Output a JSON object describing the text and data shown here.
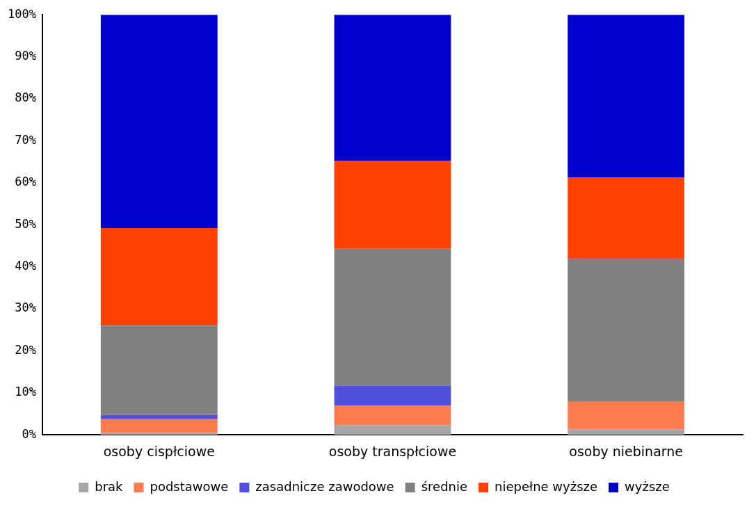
{
  "chart_data": {
    "type": "bar",
    "stacked": true,
    "categories": [
      "osoby cispłciowe",
      "osoby transpłciowe",
      "osoby niebinarne"
    ],
    "series": [
      {
        "name": "brak",
        "color": "#a6a6a6",
        "values": [
          0.5,
          2.3,
          1.3
        ]
      },
      {
        "name": "podstawowe",
        "color": "#ff7c4c",
        "values": [
          3.2,
          4.6,
          6.7
        ]
      },
      {
        "name": "zasadnicze zawodowe",
        "color": "#4f50de",
        "values": [
          1.0,
          4.8,
          0
        ]
      },
      {
        "name": "średnie",
        "color": "#808080",
        "values": [
          21.4,
          32.6,
          34.1
        ]
      },
      {
        "name": "niepełne wyższe",
        "color": "#ff4000",
        "values": [
          23.1,
          20.9,
          19.1
        ]
      },
      {
        "name": "wyższe",
        "color": "#0000cc",
        "values": [
          50.8,
          34.8,
          38.8
        ]
      }
    ],
    "ylim": [
      0,
      100
    ],
    "yticks": [
      {
        "value": 0,
        "label": "0%"
      },
      {
        "value": 10,
        "label": "10%"
      },
      {
        "value": 20,
        "label": "20%"
      },
      {
        "value": 30,
        "label": "30%"
      },
      {
        "value": 40,
        "label": "40%"
      },
      {
        "value": 50,
        "label": "50%"
      },
      {
        "value": 60,
        "label": "60%"
      },
      {
        "value": 70,
        "label": "70%"
      },
      {
        "value": 80,
        "label": "80%"
      },
      {
        "value": 90,
        "label": "90%"
      },
      {
        "value": 100,
        "label": "100%"
      }
    ],
    "grid": false,
    "legend": "bottom"
  }
}
